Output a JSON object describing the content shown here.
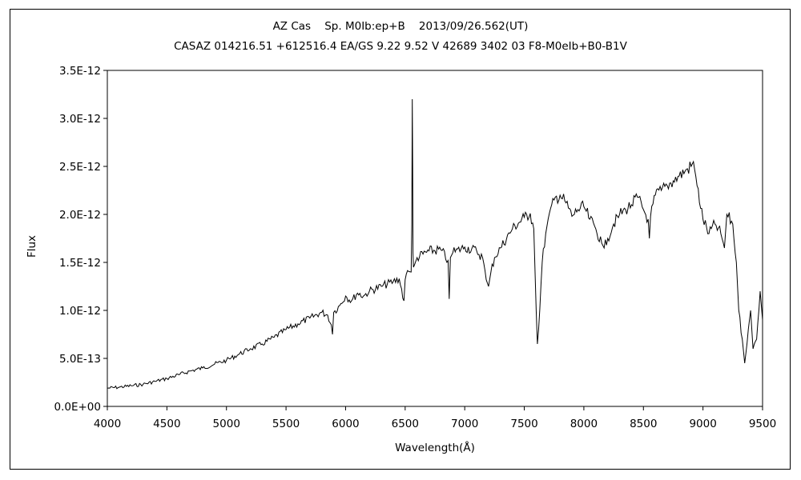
{
  "chart_data": {
    "type": "line",
    "title": "AZ Cas    Sp. M0Ib:ep+B    2013/09/26.562(UT)",
    "subtitle": "CASAZ 014216.51 +612516.4 EA/GS 9.22 9.52 V 42689 3402 03 F8-M0eIb+B0-B1V",
    "xlabel": "Wavelength(Å)",
    "ylabel": "Flux",
    "xlim": [
      4000,
      9500
    ],
    "ylim": [
      0,
      3.5e-12
    ],
    "x_ticks": [
      4000,
      4500,
      5000,
      5500,
      6000,
      6500,
      7000,
      7500,
      8000,
      8500,
      9000,
      9500
    ],
    "x_tick_labels": [
      "4000",
      "4500",
      "5000",
      "5500",
      "6000",
      "6500",
      "7000",
      "7500",
      "8000",
      "8500",
      "9000",
      "9500"
    ],
    "y_ticks": [
      0,
      5e-13,
      1e-12,
      1.5e-12,
      2e-12,
      2.5e-12,
      3e-12,
      3.5e-12
    ],
    "y_tick_labels": [
      "0.0E+00",
      "5.0E-13",
      "1.0E-12",
      "1.5E-12",
      "2.0E-12",
      "2.5E-12",
      "3.0E-12",
      "3.5E-12"
    ],
    "grid": false,
    "legend": "none",
    "line_color": "#000000",
    "series": [
      {
        "x": [
          4000,
          4100,
          4200,
          4300,
          4400,
          4500,
          4600,
          4700,
          4800,
          4900,
          5000,
          5100,
          5200,
          5300,
          5400,
          5500,
          5600,
          5700,
          5800,
          5850,
          5880,
          5890,
          5900,
          5950,
          6000,
          6050,
          6100,
          6150,
          6200,
          6300,
          6400,
          6450,
          6490,
          6500,
          6510,
          6550,
          6556,
          6560,
          6563,
          6566,
          6570,
          6580,
          6600,
          6700,
          6800,
          6860,
          6870,
          6880,
          6900,
          7000,
          7100,
          7150,
          7180,
          7200,
          7220,
          7250,
          7300,
          7400,
          7500,
          7550,
          7580,
          7600,
          7610,
          7620,
          7650,
          7680,
          7700,
          7750,
          7800,
          7850,
          7900,
          7950,
          8000,
          8050,
          8100,
          8150,
          8170,
          8200,
          8250,
          8300,
          8350,
          8400,
          8450,
          8500,
          8540,
          8550,
          8560,
          8600,
          8650,
          8700,
          8750,
          8800,
          8850,
          8900,
          8920,
          8950,
          9000,
          9050,
          9100,
          9150,
          9180,
          9200,
          9250,
          9280,
          9300,
          9330,
          9350,
          9380,
          9400,
          9420,
          9450,
          9480,
          9500
        ],
        "y": [
          1.9e-13,
          2e-13,
          2.15e-13,
          2.3e-13,
          2.6e-13,
          2.9e-13,
          3.3e-13,
          3.7e-13,
          4e-13,
          4.4e-13,
          4.8e-13,
          5.4e-13,
          6e-13,
          6.5e-13,
          7.2e-13,
          8e-13,
          8.6e-13,
          9.2e-13,
          9.8e-13,
          9.5e-13,
          8.5e-13,
          7.5e-13,
          9.8e-13,
          1.05e-12,
          1.15e-12,
          1.1e-12,
          1.18e-12,
          1.15e-12,
          1.2e-12,
          1.25e-12,
          1.3e-12,
          1.33e-12,
          1.1e-12,
          1.32e-12,
          1.38e-12,
          1.4e-12,
          1.9e-12,
          3.2e-12,
          2.5e-12,
          1.6e-12,
          1.45e-12,
          1.48e-12,
          1.55e-12,
          1.62e-12,
          1.63e-12,
          1.52e-12,
          1.12e-12,
          1.55e-12,
          1.6e-12,
          1.66e-12,
          1.62e-12,
          1.55e-12,
          1.32e-12,
          1.25e-12,
          1.4e-12,
          1.55e-12,
          1.65e-12,
          1.85e-12,
          1.97e-12,
          2.01e-12,
          1.85e-12,
          1e-12,
          6.5e-13,
          8e-13,
          1.5e-12,
          1.8e-12,
          1.95e-12,
          2.15e-12,
          2.2e-12,
          2.12e-12,
          1.98e-12,
          2.05e-12,
          2.08e-12,
          1.95e-12,
          1.85e-12,
          1.7e-12,
          1.65e-12,
          1.75e-12,
          1.9e-12,
          2e-12,
          2.05e-12,
          2.1e-12,
          2.18e-12,
          2.05e-12,
          1.95e-12,
          1.75e-12,
          1.98e-12,
          2.2e-12,
          2.25e-12,
          2.3e-12,
          2.35e-12,
          2.4e-12,
          2.45e-12,
          2.5e-12,
          2.55e-12,
          2.3e-12,
          1.95e-12,
          1.8e-12,
          1.9e-12,
          1.8e-12,
          1.65e-12,
          2e-12,
          1.9e-12,
          1.5e-12,
          1e-12,
          7e-13,
          4.5e-13,
          8e-13,
          1e-12,
          6e-13,
          7e-13,
          1.2e-12,
          9e-13
        ]
      }
    ]
  }
}
